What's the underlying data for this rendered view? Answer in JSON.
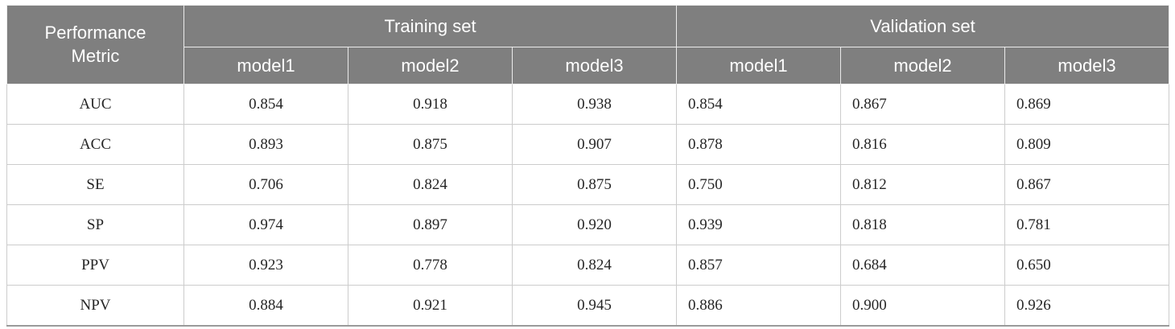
{
  "table": {
    "corner_header": "Performance Metric",
    "groups": [
      {
        "label": "Training set"
      },
      {
        "label": "Validation set"
      }
    ],
    "sub_headers": [
      "model1",
      "model2",
      "model3",
      "model1",
      "model2",
      "model3"
    ],
    "rows": [
      {
        "metric": "AUC",
        "values": [
          "0.854",
          "0.918",
          "0.938",
          "0.854",
          "0.867",
          "0.869"
        ]
      },
      {
        "metric": "ACC",
        "values": [
          "0.893",
          "0.875",
          "0.907",
          "0.878",
          "0.816",
          "0.809"
        ]
      },
      {
        "metric": "SE",
        "values": [
          "0.706",
          "0.824",
          "0.875",
          "0.750",
          "0.812",
          "0.867"
        ]
      },
      {
        "metric": "SP",
        "values": [
          "0.974",
          "0.897",
          "0.920",
          "0.939",
          "0.818",
          "0.781"
        ]
      },
      {
        "metric": "PPV",
        "values": [
          "0.923",
          "0.778",
          "0.824",
          "0.857",
          "0.684",
          "0.650"
        ]
      },
      {
        "metric": "NPV",
        "values": [
          "0.884",
          "0.921",
          "0.945",
          "0.886",
          "0.900",
          "0.926"
        ]
      }
    ],
    "colors": {
      "header_bg": "#7f7f7f",
      "header_text": "#ffffff",
      "body_text": "#262626",
      "row_border": "#cccccc",
      "bottom_border": "#9a9a9a"
    }
  }
}
